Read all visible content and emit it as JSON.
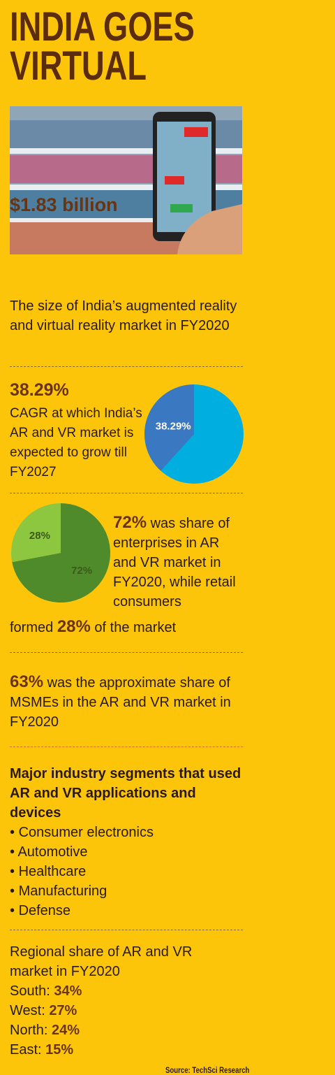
{
  "title_lines": [
    "INDIA GOES",
    "VIRTUAL"
  ],
  "market_size": {
    "headline": "$1.83 billion",
    "text": "The size of India’s augmented reality and virtual reality market in FY2020"
  },
  "cagr": {
    "headline": "38.29%",
    "text": "CAGR at which India’s AR and VR market is expected to grow till FY2027",
    "pie": {
      "type": "pie",
      "values": [
        38.29
      ],
      "value_labels": [
        "38.29%"
      ],
      "colors": [
        "#3a78c2"
      ],
      "background": "#00aee0",
      "clockwise": false
    }
  },
  "enterprise": {
    "text_a": " was share of enterprises in AR and VR market in FY2020, while retail consumers",
    "text_b": "formed ",
    "text_c": " of the market",
    "pie": {
      "type": "pie",
      "values": [
        72,
        28
      ],
      "value_labels": [
        "72%",
        "28%"
      ],
      "colors": [
        "#4f8a2b",
        "#8dc63f"
      ],
      "clockwise": true
    }
  },
  "msme": {
    "headline": "63%",
    "text": " was the approximate share of MSMEs in the AR and VR market in FY2020"
  },
  "segments": {
    "heading": "Major industry segments that used AR and VR applications and devices",
    "items": [
      "Consumer electronics",
      "Automotive",
      "Healthcare",
      "Manufacturing",
      "Defense"
    ]
  },
  "regional": {
    "heading": "Regional share of AR and VR market in FY2020",
    "rows": [
      {
        "label": "South: ",
        "value": "34%"
      },
      {
        "label": "West: ",
        "value": "27%"
      },
      {
        "label": "North: ",
        "value": "24%"
      },
      {
        "label": "East: ",
        "value": "15%"
      }
    ]
  },
  "source": "Source: TechSci Research"
}
